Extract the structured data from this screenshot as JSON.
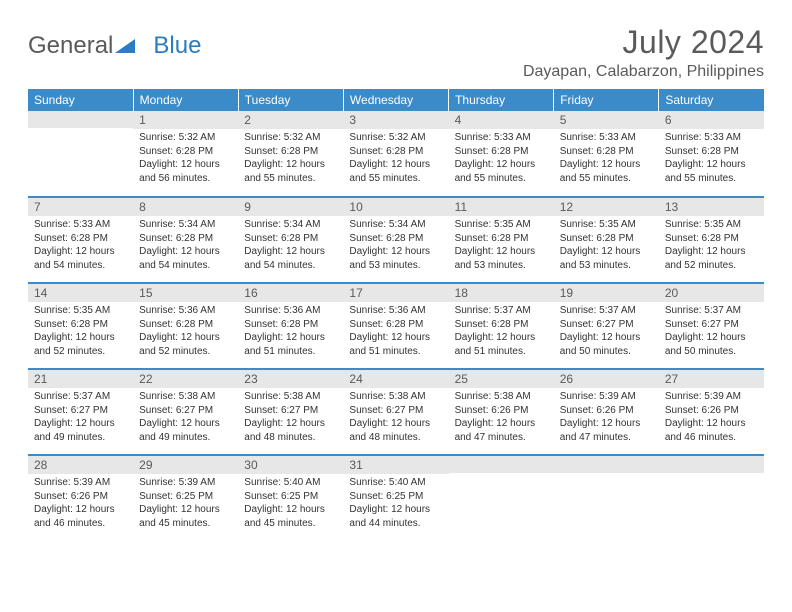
{
  "logo": {
    "part1": "General",
    "part2": "Blue"
  },
  "title": "July 2024",
  "location": "Dayapan, Calabarzon, Philippines",
  "colors": {
    "header_bg": "#3b8bc9",
    "header_text": "#ffffff",
    "daynum_bg": "#e7e7e7",
    "text_gray": "#5a5a5a",
    "logo_blue": "#2b7cc0",
    "border": "#3b8bc9"
  },
  "day_names": [
    "Sunday",
    "Monday",
    "Tuesday",
    "Wednesday",
    "Thursday",
    "Friday",
    "Saturday"
  ],
  "weeks": [
    [
      {
        "day": "",
        "sunrise": "",
        "sunset": "",
        "daylight1": "",
        "daylight2": ""
      },
      {
        "day": "1",
        "sunrise": "Sunrise: 5:32 AM",
        "sunset": "Sunset: 6:28 PM",
        "daylight1": "Daylight: 12 hours",
        "daylight2": "and 56 minutes."
      },
      {
        "day": "2",
        "sunrise": "Sunrise: 5:32 AM",
        "sunset": "Sunset: 6:28 PM",
        "daylight1": "Daylight: 12 hours",
        "daylight2": "and 55 minutes."
      },
      {
        "day": "3",
        "sunrise": "Sunrise: 5:32 AM",
        "sunset": "Sunset: 6:28 PM",
        "daylight1": "Daylight: 12 hours",
        "daylight2": "and 55 minutes."
      },
      {
        "day": "4",
        "sunrise": "Sunrise: 5:33 AM",
        "sunset": "Sunset: 6:28 PM",
        "daylight1": "Daylight: 12 hours",
        "daylight2": "and 55 minutes."
      },
      {
        "day": "5",
        "sunrise": "Sunrise: 5:33 AM",
        "sunset": "Sunset: 6:28 PM",
        "daylight1": "Daylight: 12 hours",
        "daylight2": "and 55 minutes."
      },
      {
        "day": "6",
        "sunrise": "Sunrise: 5:33 AM",
        "sunset": "Sunset: 6:28 PM",
        "daylight1": "Daylight: 12 hours",
        "daylight2": "and 55 minutes."
      }
    ],
    [
      {
        "day": "7",
        "sunrise": "Sunrise: 5:33 AM",
        "sunset": "Sunset: 6:28 PM",
        "daylight1": "Daylight: 12 hours",
        "daylight2": "and 54 minutes."
      },
      {
        "day": "8",
        "sunrise": "Sunrise: 5:34 AM",
        "sunset": "Sunset: 6:28 PM",
        "daylight1": "Daylight: 12 hours",
        "daylight2": "and 54 minutes."
      },
      {
        "day": "9",
        "sunrise": "Sunrise: 5:34 AM",
        "sunset": "Sunset: 6:28 PM",
        "daylight1": "Daylight: 12 hours",
        "daylight2": "and 54 minutes."
      },
      {
        "day": "10",
        "sunrise": "Sunrise: 5:34 AM",
        "sunset": "Sunset: 6:28 PM",
        "daylight1": "Daylight: 12 hours",
        "daylight2": "and 53 minutes."
      },
      {
        "day": "11",
        "sunrise": "Sunrise: 5:35 AM",
        "sunset": "Sunset: 6:28 PM",
        "daylight1": "Daylight: 12 hours",
        "daylight2": "and 53 minutes."
      },
      {
        "day": "12",
        "sunrise": "Sunrise: 5:35 AM",
        "sunset": "Sunset: 6:28 PM",
        "daylight1": "Daylight: 12 hours",
        "daylight2": "and 53 minutes."
      },
      {
        "day": "13",
        "sunrise": "Sunrise: 5:35 AM",
        "sunset": "Sunset: 6:28 PM",
        "daylight1": "Daylight: 12 hours",
        "daylight2": "and 52 minutes."
      }
    ],
    [
      {
        "day": "14",
        "sunrise": "Sunrise: 5:35 AM",
        "sunset": "Sunset: 6:28 PM",
        "daylight1": "Daylight: 12 hours",
        "daylight2": "and 52 minutes."
      },
      {
        "day": "15",
        "sunrise": "Sunrise: 5:36 AM",
        "sunset": "Sunset: 6:28 PM",
        "daylight1": "Daylight: 12 hours",
        "daylight2": "and 52 minutes."
      },
      {
        "day": "16",
        "sunrise": "Sunrise: 5:36 AM",
        "sunset": "Sunset: 6:28 PM",
        "daylight1": "Daylight: 12 hours",
        "daylight2": "and 51 minutes."
      },
      {
        "day": "17",
        "sunrise": "Sunrise: 5:36 AM",
        "sunset": "Sunset: 6:28 PM",
        "daylight1": "Daylight: 12 hours",
        "daylight2": "and 51 minutes."
      },
      {
        "day": "18",
        "sunrise": "Sunrise: 5:37 AM",
        "sunset": "Sunset: 6:28 PM",
        "daylight1": "Daylight: 12 hours",
        "daylight2": "and 51 minutes."
      },
      {
        "day": "19",
        "sunrise": "Sunrise: 5:37 AM",
        "sunset": "Sunset: 6:27 PM",
        "daylight1": "Daylight: 12 hours",
        "daylight2": "and 50 minutes."
      },
      {
        "day": "20",
        "sunrise": "Sunrise: 5:37 AM",
        "sunset": "Sunset: 6:27 PM",
        "daylight1": "Daylight: 12 hours",
        "daylight2": "and 50 minutes."
      }
    ],
    [
      {
        "day": "21",
        "sunrise": "Sunrise: 5:37 AM",
        "sunset": "Sunset: 6:27 PM",
        "daylight1": "Daylight: 12 hours",
        "daylight2": "and 49 minutes."
      },
      {
        "day": "22",
        "sunrise": "Sunrise: 5:38 AM",
        "sunset": "Sunset: 6:27 PM",
        "daylight1": "Daylight: 12 hours",
        "daylight2": "and 49 minutes."
      },
      {
        "day": "23",
        "sunrise": "Sunrise: 5:38 AM",
        "sunset": "Sunset: 6:27 PM",
        "daylight1": "Daylight: 12 hours",
        "daylight2": "and 48 minutes."
      },
      {
        "day": "24",
        "sunrise": "Sunrise: 5:38 AM",
        "sunset": "Sunset: 6:27 PM",
        "daylight1": "Daylight: 12 hours",
        "daylight2": "and 48 minutes."
      },
      {
        "day": "25",
        "sunrise": "Sunrise: 5:38 AM",
        "sunset": "Sunset: 6:26 PM",
        "daylight1": "Daylight: 12 hours",
        "daylight2": "and 47 minutes."
      },
      {
        "day": "26",
        "sunrise": "Sunrise: 5:39 AM",
        "sunset": "Sunset: 6:26 PM",
        "daylight1": "Daylight: 12 hours",
        "daylight2": "and 47 minutes."
      },
      {
        "day": "27",
        "sunrise": "Sunrise: 5:39 AM",
        "sunset": "Sunset: 6:26 PM",
        "daylight1": "Daylight: 12 hours",
        "daylight2": "and 46 minutes."
      }
    ],
    [
      {
        "day": "28",
        "sunrise": "Sunrise: 5:39 AM",
        "sunset": "Sunset: 6:26 PM",
        "daylight1": "Daylight: 12 hours",
        "daylight2": "and 46 minutes."
      },
      {
        "day": "29",
        "sunrise": "Sunrise: 5:39 AM",
        "sunset": "Sunset: 6:25 PM",
        "daylight1": "Daylight: 12 hours",
        "daylight2": "and 45 minutes."
      },
      {
        "day": "30",
        "sunrise": "Sunrise: 5:40 AM",
        "sunset": "Sunset: 6:25 PM",
        "daylight1": "Daylight: 12 hours",
        "daylight2": "and 45 minutes."
      },
      {
        "day": "31",
        "sunrise": "Sunrise: 5:40 AM",
        "sunset": "Sunset: 6:25 PM",
        "daylight1": "Daylight: 12 hours",
        "daylight2": "and 44 minutes."
      },
      {
        "day": "",
        "sunrise": "",
        "sunset": "",
        "daylight1": "",
        "daylight2": ""
      },
      {
        "day": "",
        "sunrise": "",
        "sunset": "",
        "daylight1": "",
        "daylight2": ""
      },
      {
        "day": "",
        "sunrise": "",
        "sunset": "",
        "daylight1": "",
        "daylight2": ""
      }
    ]
  ]
}
